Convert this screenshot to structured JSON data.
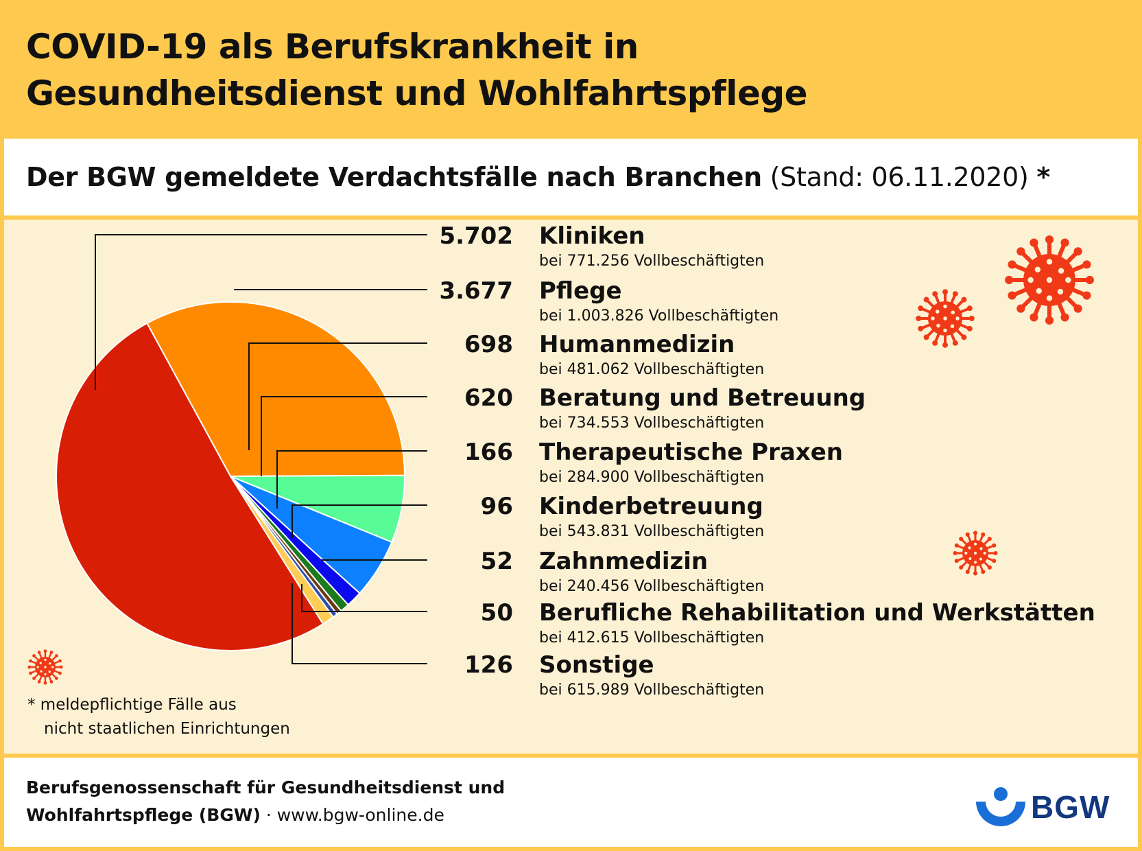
{
  "header": {
    "title_line1": "COVID-19 als Berufskrankheit in",
    "title_line2": "Gesundheitsdienst und Wohlfahrtspflege"
  },
  "subtitle": {
    "main": "Der BGW gemeldete Verdachtsfälle nach Branchen",
    "date": "(Stand: 06.11.2020)",
    "star": "*"
  },
  "chart_data": {
    "type": "pie",
    "categories": [
      "Kliniken",
      "Pflege",
      "Humanmedizin",
      "Beratung und Betreuung",
      "Therapeutische Praxen",
      "Kinderbetreuung",
      "Zahnmedizin",
      "Berufliche Rehabilitation und Werkstätten",
      "Sonstige"
    ],
    "value_labels": [
      "5.702",
      "3.677",
      "698",
      "620",
      "166",
      "96",
      "52",
      "50",
      "126"
    ],
    "values": [
      5702,
      3677,
      698,
      620,
      166,
      96,
      52,
      50,
      126
    ],
    "employees": [
      "bei 771.256 Vollbeschäftigten",
      "bei 1.003.826 Vollbeschäftigten",
      "bei 481.062 Vollbeschäftigten",
      "bei 734.553 Vollbeschäftigten",
      "bei 284.900 Vollbeschäftigten",
      "bei 543.831 Vollbeschäftigten",
      "bei 240.456 Vollbeschäftigten",
      "bei 412.615 Vollbeschäftigten",
      "bei 615.989 Vollbeschäftigten"
    ],
    "colors": [
      "#d81e05",
      "#ff8a00",
      "#57fc96",
      "#0c80ff",
      "#0a0aec",
      "#1b7a1b",
      "#6b3a12",
      "#2f4fa8",
      "#ffcc55"
    ],
    "legend_position": "right"
  },
  "footnote": {
    "line1": "* meldepflichtige Fälle aus",
    "line2": "nicht staatlichen Einrichtungen"
  },
  "footer": {
    "org_line1": "Berufsgenossenschaft für Gesundheitsdienst und",
    "org_line2": "Wohlfahrtspflege (BGW)",
    "separator": " · ",
    "website": "www.bgw-online.de"
  },
  "logo": {
    "text": "BGW",
    "color": "#14387f",
    "accent": "#1a6fd6"
  },
  "decor": {
    "virus_color": "#f03a17",
    "virus_icon": "virus-icon"
  }
}
